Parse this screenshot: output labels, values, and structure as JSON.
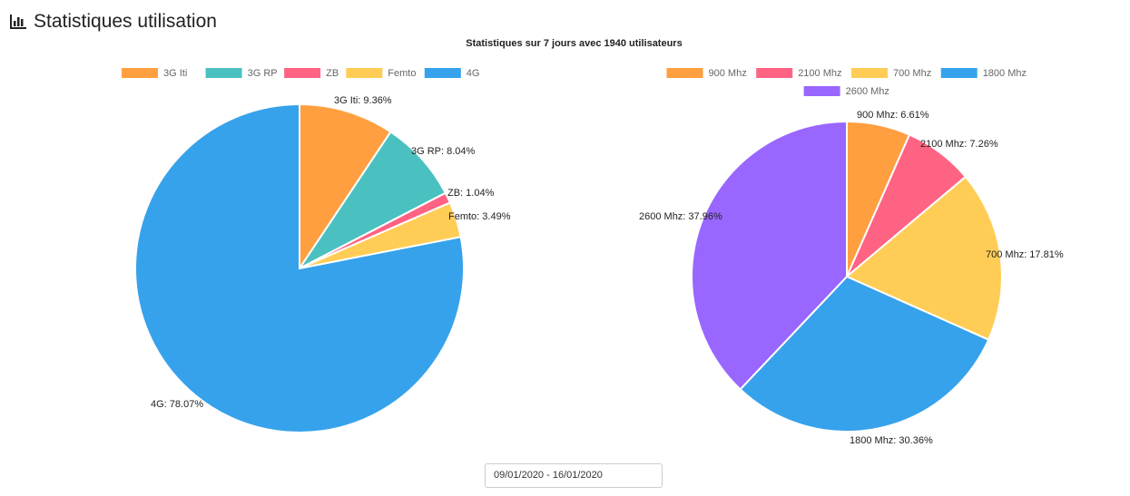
{
  "header": {
    "title": "Statistiques utilisation",
    "icon": "bar-chart-icon"
  },
  "date_range": "09/01/2020 - 16/01/2020",
  "chart_data": [
    {
      "type": "pie",
      "title": "Statistiques sur 7 jours avec 1940 utilisateurs",
      "legend": "top",
      "slices": [
        {
          "name": "3G Iti",
          "value": 9.36,
          "label": "3G Iti: 9.36%",
          "color": "#ff9f40"
        },
        {
          "name": "3G RP",
          "value": 8.04,
          "label": "3G RP: 8.04%",
          "color": "#4bc0c0"
        },
        {
          "name": "ZB",
          "value": 1.04,
          "label": "ZB: 1.04%",
          "color": "#ff6384"
        },
        {
          "name": "Femto",
          "value": 3.49,
          "label": "Femto: 3.49%",
          "color": "#ffcd56"
        },
        {
          "name": "4G",
          "value": 78.07,
          "label": "4G: 78.07%",
          "color": "#36a2eb"
        }
      ]
    },
    {
      "type": "pie",
      "legend": "top",
      "slices": [
        {
          "name": "900 Mhz",
          "value": 6.61,
          "label": "900 Mhz: 6.61%",
          "color": "#ff9f40"
        },
        {
          "name": "2100 Mhz",
          "value": 7.26,
          "label": "2100 Mhz: 7.26%",
          "color": "#ff6384"
        },
        {
          "name": "700 Mhz",
          "value": 17.81,
          "label": "700 Mhz: 17.81%",
          "color": "#ffcd56"
        },
        {
          "name": "1800 Mhz",
          "value": 30.36,
          "label": "1800 Mhz: 30.36%",
          "color": "#36a2eb"
        },
        {
          "name": "2600 Mhz",
          "value": 37.96,
          "label": "2600 Mhz: 37.96%",
          "color": "#9966ff"
        }
      ]
    }
  ]
}
